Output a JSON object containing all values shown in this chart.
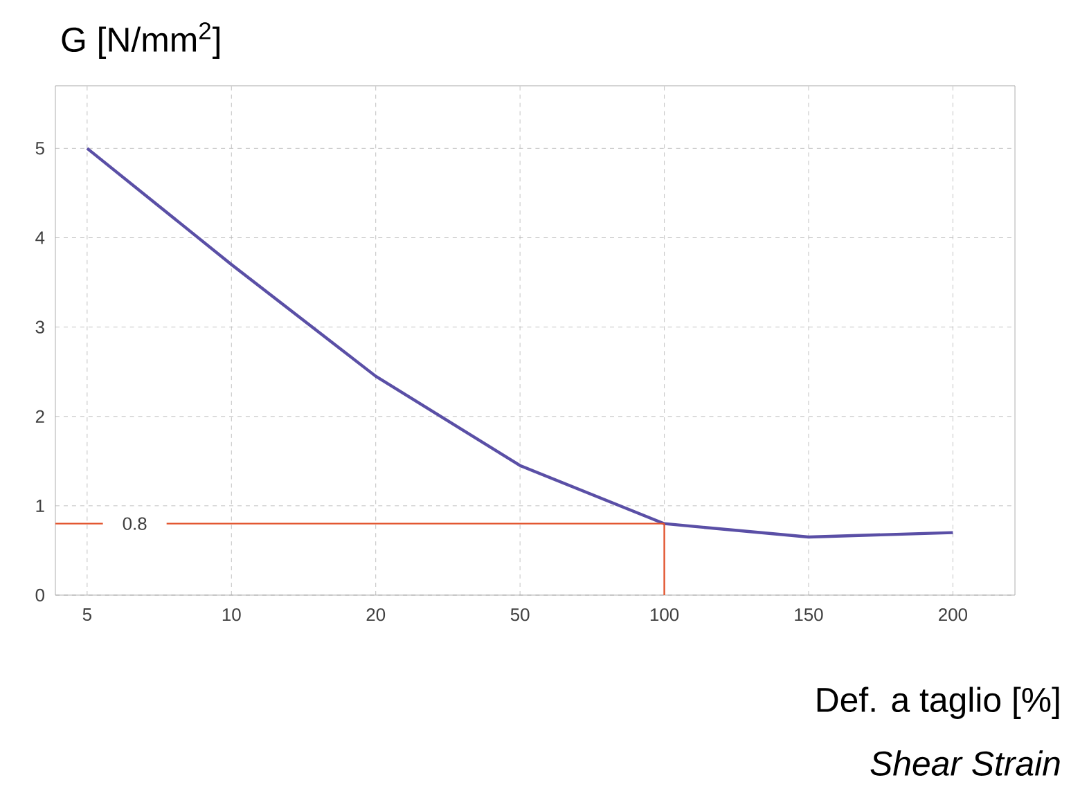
{
  "chart_data": {
    "type": "line",
    "ylabel": "G [N/mm$^{2}$]",
    "xlabel": "Def. a taglio [%]",
    "annotations": [
      "Shear Strain"
    ],
    "categories": [
      "5",
      "10",
      "20",
      "50",
      "100",
      "150",
      "200"
    ],
    "series": [
      {
        "color": "#5a4fa6",
        "values": [
          5.0,
          3.7,
          2.45,
          1.45,
          0.8,
          0.65,
          0.7
        ]
      }
    ],
    "ylim": [
      0,
      5.7
    ],
    "yticks": [
      0,
      1,
      2,
      3,
      4,
      5
    ],
    "ref_lines": [
      {
        "axis": "y",
        "value": 0.8,
        "label": "0.8",
        "color": "#e2542e"
      },
      {
        "axis": "x",
        "value": "100",
        "color": "#e2542e"
      }
    ],
    "grid": true,
    "marker": "none",
    "line_style": "solid"
  }
}
